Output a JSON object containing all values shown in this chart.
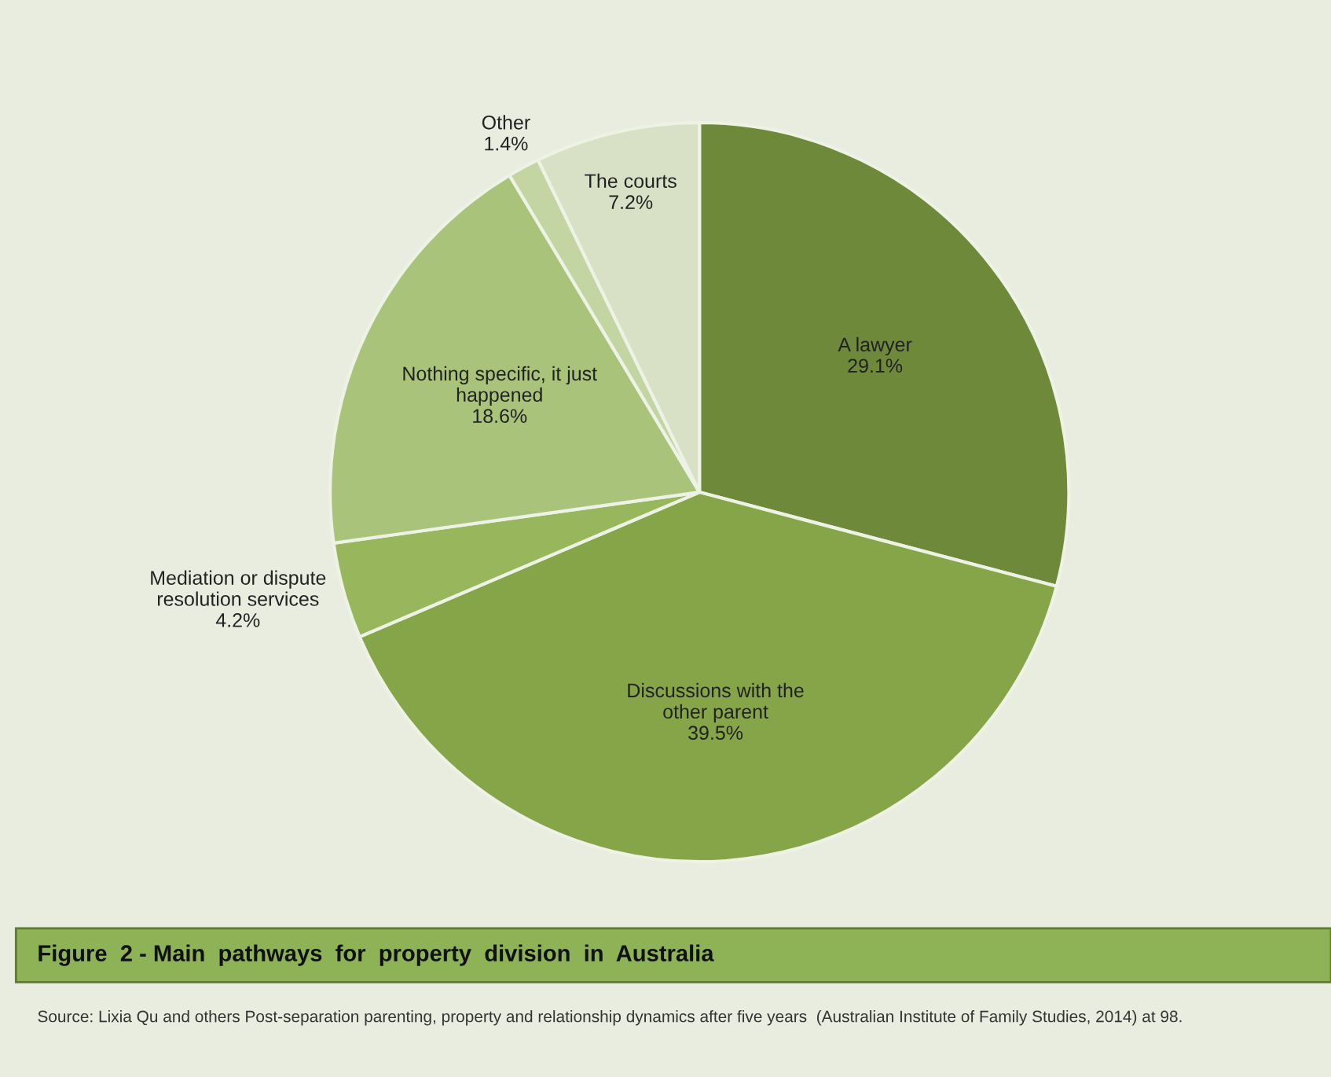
{
  "chart_data": {
    "type": "pie",
    "title": "Figure  2 - Main  pathways  for  property  division  in  Australia",
    "categories": [
      "A lawyer",
      "Discussions with the\nother parent",
      "Mediation or dispute\nresolution services",
      "Nothing specific, it just\nhappened",
      "Other",
      "The courts"
    ],
    "values": [
      29.1,
      39.5,
      4.2,
      18.6,
      1.4,
      7.2
    ],
    "value_labels": [
      "29.1%",
      "39.5%",
      "4.2%",
      "18.6%",
      "1.4%",
      "7.2%"
    ],
    "colors": [
      "#6e893a",
      "#86a548",
      "#98b65c",
      "#a9c47a",
      "#c4d5a4",
      "#d8e1c5"
    ],
    "annotations": [
      "Source: Lixia Qu and others Post-separation parenting, property and relationship dynamics after five years  (Australian Institute of Family Studies, 2014) at 98."
    ]
  }
}
